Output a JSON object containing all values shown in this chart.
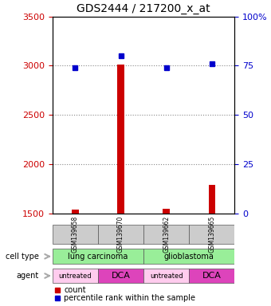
{
  "title": "GDS2444 / 217200_x_at",
  "samples": [
    "GSM139658",
    "GSM139670",
    "GSM139662",
    "GSM139665"
  ],
  "count_values": [
    1540,
    3010,
    1545,
    1790
  ],
  "percentile_values": [
    74,
    80,
    74,
    76
  ],
  "ylim_left": [
    1500,
    3500
  ],
  "ylim_right": [
    0,
    100
  ],
  "yticks_left": [
    1500,
    2000,
    2500,
    3000,
    3500
  ],
  "yticks_right": [
    0,
    25,
    50,
    75,
    100
  ],
  "ytick_labels_right": [
    "0",
    "25",
    "50",
    "75",
    "100%"
  ],
  "bar_color": "#CC0000",
  "dot_color": "#0000CC",
  "cell_types": [
    [
      "lung carcinoma",
      2
    ],
    [
      "glioblastoma",
      2
    ]
  ],
  "cell_type_color": "#99EE99",
  "agents": [
    "untreated",
    "DCA",
    "untreated",
    "DCA"
  ],
  "agent_colors": [
    "#FFAADD",
    "#EE44CC",
    "#FFAADD",
    "#EE44CC"
  ],
  "agent_untreated_color": "#FFCCEE",
  "agent_dca_color": "#DD44BB",
  "grid_color": "#888888",
  "sample_box_color": "#CCCCCC",
  "label_color_left": "#CC0000",
  "label_color_right": "#0000CC",
  "arrow_color": "#AAAAAA"
}
